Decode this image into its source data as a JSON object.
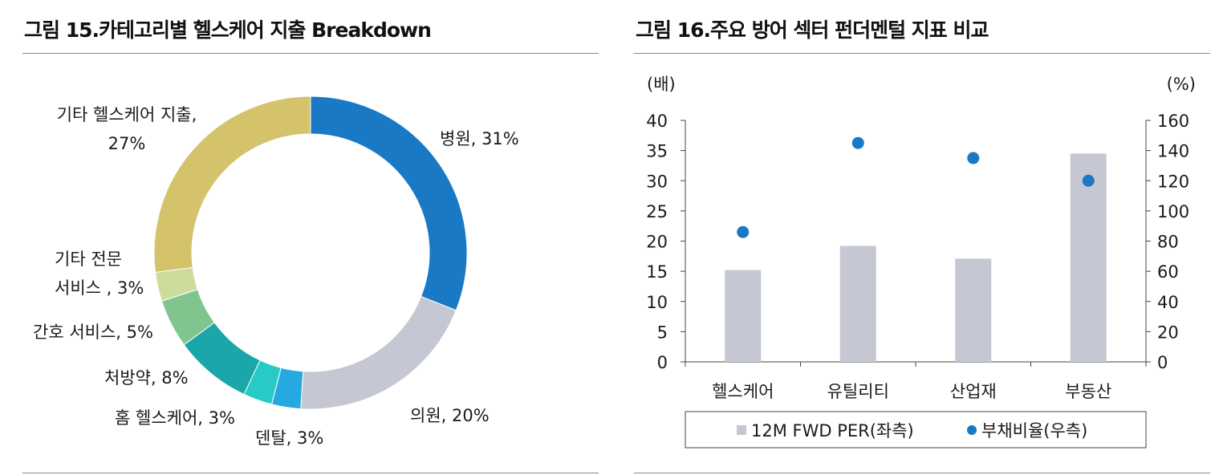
{
  "chart_data": [
    {
      "type": "pie",
      "title": "그림 15.카테고리별 헬스케어 지출 Breakdown",
      "slices": [
        {
          "label_lines": [
            "병원, 31%"
          ],
          "value": 31,
          "color": "#1979c4"
        },
        {
          "label_lines": [
            "의원, 20%"
          ],
          "value": 20,
          "color": "#c5c7d2"
        },
        {
          "label_lines": [
            "덴탈, 3%"
          ],
          "value": 3,
          "color": "#26a9e0"
        },
        {
          "label_lines": [
            "홈 헬스케어, 3%"
          ],
          "value": 3,
          "color": "#27cac6"
        },
        {
          "label_lines": [
            "처방약, 8%"
          ],
          "value": 8,
          "color": "#1ba6a9"
        },
        {
          "label_lines": [
            "간호 서비스, 5%"
          ],
          "value": 5,
          "color": "#7fc58d"
        },
        {
          "label_lines": [
            "기타 전문",
            "서비스 , 3%"
          ],
          "value": 3,
          "color": "#cbdc9c"
        },
        {
          "label_lines": [
            "기타 헬스케어 지출,",
            "27%"
          ],
          "value": 27,
          "color": "#d4c36b"
        }
      ]
    },
    {
      "type": "bar",
      "title": "그림 16.주요 방어 섹터 펀더멘털 지표 비교",
      "categories": [
        "헬스케어",
        "유틸리티",
        "산업재",
        "부동산"
      ],
      "series": [
        {
          "name": "12M FWD PER(좌측)",
          "type": "bar",
          "axis": "left",
          "values": [
            15.2,
            19.2,
            17.1,
            34.5
          ],
          "color": "#c5c7d2"
        },
        {
          "name": "부채비율(우측)",
          "type": "scatter",
          "axis": "right",
          "values": [
            86,
            145,
            135,
            120
          ],
          "color": "#1979c4"
        }
      ],
      "left_axis": {
        "unit_label": "(배)",
        "ylim": [
          0,
          40
        ],
        "ticks": [
          "0",
          "5",
          "10",
          "15",
          "20",
          "25",
          "30",
          "35",
          "40"
        ]
      },
      "right_axis": {
        "unit_label": "(%)",
        "ylim": [
          0,
          160
        ],
        "ticks": [
          "0",
          "20",
          "40",
          "60",
          "80",
          "100",
          "120",
          "140",
          "160"
        ]
      },
      "grid": false,
      "legend_position": "bottom"
    }
  ]
}
